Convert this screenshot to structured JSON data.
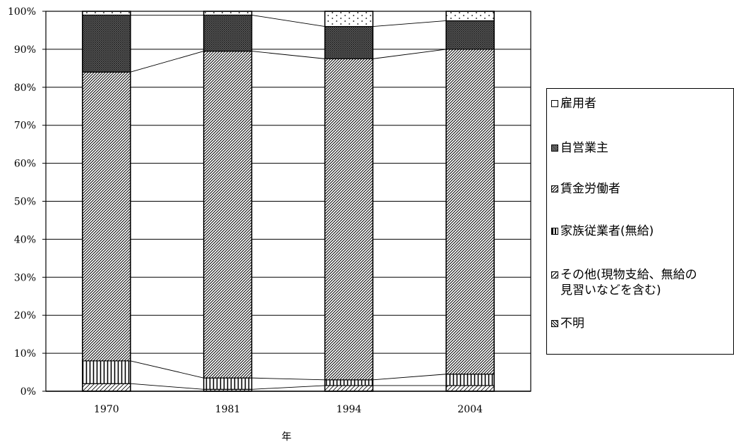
{
  "chart_data": {
    "type": "bar",
    "stacked": true,
    "percent": true,
    "categories": [
      "1970",
      "1981",
      "1994",
      "2004"
    ],
    "xlabel": "年",
    "ylabel": "",
    "ylim": [
      0,
      100
    ],
    "y_ticks": [
      "0%",
      "10%",
      "20%",
      "30%",
      "40%",
      "50%",
      "60%",
      "70%",
      "80%",
      "90%",
      "100%"
    ],
    "grid": true,
    "legend_position": "right",
    "series": [
      {
        "name": "不明",
        "values": [
          0,
          0,
          0,
          0
        ],
        "pattern": "hatch-dense"
      },
      {
        "name": "その他(現物支給、無給の\n見習いなどを含む)",
        "values": [
          2,
          0.5,
          1.5,
          1.5
        ],
        "pattern": "hatch-sparse"
      },
      {
        "name": "家族従業者(無給)",
        "values": [
          6,
          3,
          1.5,
          3
        ],
        "pattern": "vertical"
      },
      {
        "name": "賃金労働者",
        "values": [
          76,
          86,
          84.5,
          85.5
        ],
        "pattern": "diagonal"
      },
      {
        "name": "自営業主",
        "values": [
          15,
          9.5,
          8.5,
          7.5
        ],
        "pattern": "crosshatch"
      },
      {
        "name": "雇用者",
        "values": [
          1,
          1,
          4,
          2.5
        ],
        "pattern": "dots"
      }
    ]
  },
  "legend": {
    "items": [
      "雇用者",
      "自営業主",
      "賃金労働者",
      "家族従業者(無給)",
      "その他(現物支給、無給の\n見習いなどを含む)",
      "不明"
    ]
  }
}
